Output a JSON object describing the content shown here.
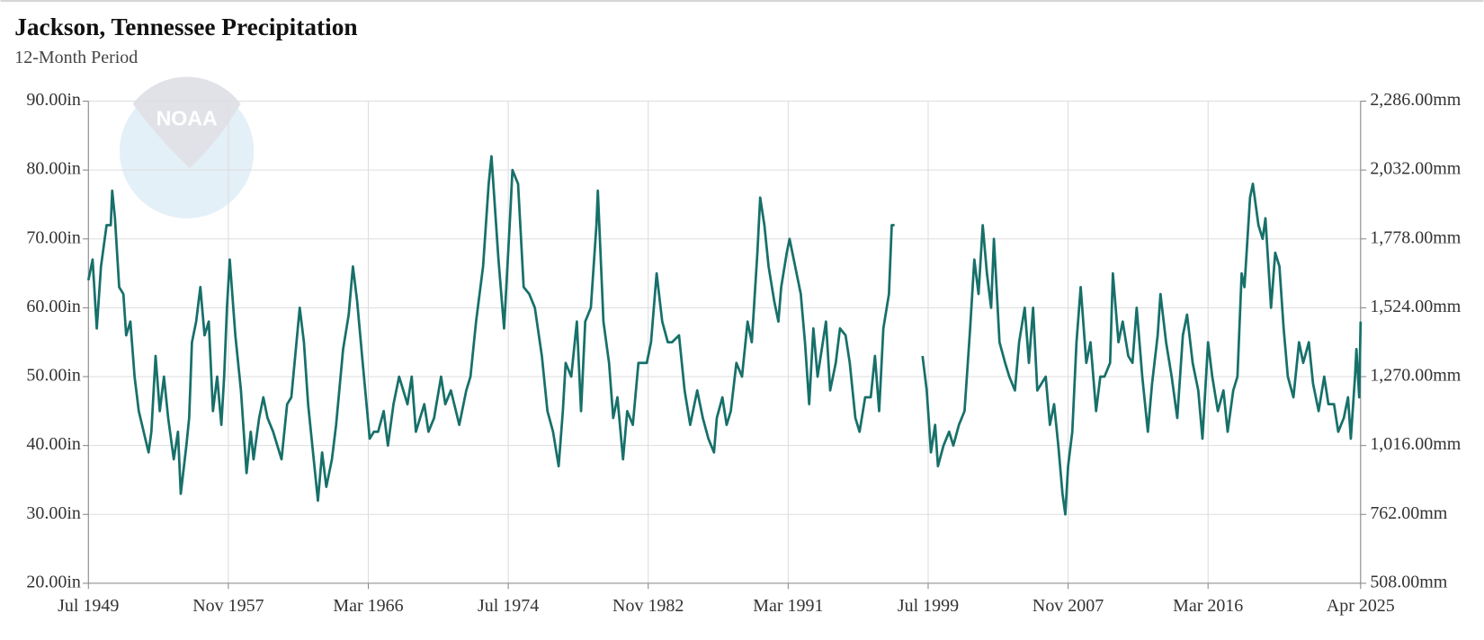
{
  "chart_data": {
    "type": "line",
    "title": "Jackson, Tennessee Precipitation",
    "subtitle": "12-Month Period",
    "watermark": "NOAA",
    "grid": true,
    "xlim": [
      "1949-07",
      "2025-04"
    ],
    "xticks": [
      {
        "value": "1949-07",
        "label": "Jul 1949"
      },
      {
        "value": "1957-11",
        "label": "Nov 1957"
      },
      {
        "value": "1966-03",
        "label": "Mar 1966"
      },
      {
        "value": "1974-07",
        "label": "Jul 1974"
      },
      {
        "value": "1982-11",
        "label": "Nov 1982"
      },
      {
        "value": "1991-03",
        "label": "Mar 1991"
      },
      {
        "value": "1999-07",
        "label": "Jul 1999"
      },
      {
        "value": "2007-11",
        "label": "Nov 2007"
      },
      {
        "value": "2016-03",
        "label": "Mar 2016"
      },
      {
        "value": "2025-04",
        "label": "Apr 2025"
      }
    ],
    "ylim": [
      20,
      90
    ],
    "yticks": [
      {
        "value": 90,
        "label": "90.00in"
      },
      {
        "value": 80,
        "label": "80.00in"
      },
      {
        "value": 70,
        "label": "70.00in"
      },
      {
        "value": 60,
        "label": "60.00in"
      },
      {
        "value": 50,
        "label": "50.00in"
      },
      {
        "value": 40,
        "label": "40.00in"
      },
      {
        "value": 30,
        "label": "30.00in"
      },
      {
        "value": 20,
        "label": "20.00in"
      }
    ],
    "y2lim": [
      508,
      2286
    ],
    "y2ticks": [
      {
        "value": 2286,
        "label": "2,286.00mm"
      },
      {
        "value": 2032,
        "label": "2,032.00mm"
      },
      {
        "value": 1778,
        "label": "1,778.00mm"
      },
      {
        "value": 1524,
        "label": "1,524.00mm"
      },
      {
        "value": 1270,
        "label": "1,270.00mm"
      },
      {
        "value": 1016,
        "label": "1,016.00mm"
      },
      {
        "value": 762,
        "label": "762.00mm"
      },
      {
        "value": 508,
        "label": "508.00mm"
      }
    ],
    "x": [
      "1949-07",
      "1949-10",
      "1950-01",
      "1950-04",
      "1950-08",
      "1950-11",
      "1950-12",
      "1951-02",
      "1951-05",
      "1951-08",
      "1951-10",
      "1952-01",
      "1952-04",
      "1952-07",
      "1953-02",
      "1953-04",
      "1953-07",
      "1953-10",
      "1954-01",
      "1954-04",
      "1954-08",
      "1954-11",
      "1955-01",
      "1955-05",
      "1955-07",
      "1955-09",
      "1955-12",
      "1956-03",
      "1956-06",
      "1956-09",
      "1956-12",
      "1957-03",
      "1957-06",
      "1957-08",
      "1957-10",
      "1957-12",
      "1958-04",
      "1958-08",
      "1958-12",
      "1959-03",
      "1959-05",
      "1959-09",
      "1959-12",
      "1960-03",
      "1960-07",
      "1961-01",
      "1961-05",
      "1961-08",
      "1962-02",
      "1962-05",
      "1962-08",
      "1963-03",
      "1963-06",
      "1963-09",
      "1964-01",
      "1964-04",
      "1964-09",
      "1965-01",
      "1965-04",
      "1965-07",
      "1965-11",
      "1966-04",
      "1966-07",
      "1966-10",
      "1967-02",
      "1967-05",
      "1967-09",
      "1968-01",
      "1968-07",
      "1968-10",
      "1969-01",
      "1969-07",
      "1969-10",
      "1970-02",
      "1970-07",
      "1970-10",
      "1971-02",
      "1971-08",
      "1972-01",
      "1972-04",
      "1972-08",
      "1973-01",
      "1973-05",
      "1973-07",
      "1973-12",
      "1974-04",
      "1974-08",
      "1974-10",
      "1975-02",
      "1975-06",
      "1975-10",
      "1976-02",
      "1976-07",
      "1976-11",
      "1977-03",
      "1977-07",
      "1977-10",
      "1977-12",
      "1978-04",
      "1978-08",
      "1978-11",
      "1979-02",
      "1979-06",
      "1979-10",
      "1979-11",
      "1980-03",
      "1980-07",
      "1980-10",
      "1981-01",
      "1981-05",
      "1981-08",
      "1981-12",
      "1982-04",
      "1982-10",
      "1983-01",
      "1983-05",
      "1983-09",
      "1984-01",
      "1984-04",
      "1984-09",
      "1985-01",
      "1985-05",
      "1985-10",
      "1986-02",
      "1986-06",
      "1986-10",
      "1986-12",
      "1987-04",
      "1987-07",
      "1987-10",
      "1988-02",
      "1988-06",
      "1988-10",
      "1989-01",
      "1989-05",
      "1989-07",
      "1989-10",
      "1990-01",
      "1990-05",
      "1990-08",
      "1990-10",
      "1991-02",
      "1991-04",
      "1991-08",
      "1991-12",
      "1992-03",
      "1992-06",
      "1992-09",
      "1992-12",
      "1993-03",
      "1993-06",
      "1993-09",
      "1994-01",
      "1994-04",
      "1994-08",
      "1994-11",
      "1995-03",
      "1995-06",
      "1995-10",
      "1996-02",
      "1996-05",
      "1996-08",
      "1996-11",
      "1997-03",
      "1997-05",
      "1997-07",
      "1998-06",
      "1999-03",
      "1999-06",
      "1999-09",
      "1999-12",
      "2000-02",
      "2000-06",
      "2000-10",
      "2001-01",
      "2001-05",
      "2001-09",
      "2002-01",
      "2002-04",
      "2002-07",
      "2002-10",
      "2003-01",
      "2003-04",
      "2003-06",
      "2003-10",
      "2004-02",
      "2004-05",
      "2004-09",
      "2004-12",
      "2005-04",
      "2005-07",
      "2005-10",
      "2006-01",
      "2006-04",
      "2006-07",
      "2006-10",
      "2007-01",
      "2007-04",
      "2007-07",
      "2007-09",
      "2007-11",
      "2008-02",
      "2008-05",
      "2008-08",
      "2008-12",
      "2009-03",
      "2009-07",
      "2009-10",
      "2010-01",
      "2010-05",
      "2010-07",
      "2010-11",
      "2011-02",
      "2011-06",
      "2011-09",
      "2011-12",
      "2012-04",
      "2012-08",
      "2012-11",
      "2013-03",
      "2013-05",
      "2013-09",
      "2014-01",
      "2014-05",
      "2014-09",
      "2014-12",
      "2015-04",
      "2015-08",
      "2015-11",
      "2016-03",
      "2016-06",
      "2016-10",
      "2017-02",
      "2017-05",
      "2017-09",
      "2017-12",
      "2018-03",
      "2018-05",
      "2018-09",
      "2018-11",
      "2019-03",
      "2019-06",
      "2019-08",
      "2019-12",
      "2020-03",
      "2020-06",
      "2020-09",
      "2020-12",
      "2021-04",
      "2021-08",
      "2021-11",
      "2022-03",
      "2022-06",
      "2022-10",
      "2023-02",
      "2023-05",
      "2023-09",
      "2023-12",
      "2024-04",
      "2024-07",
      "2024-09",
      "2024-12",
      "2025-01",
      "2025-03",
      "2025-04"
    ],
    "series": [
      {
        "name": "Precipitation",
        "color": "#17706a",
        "values": [
          64,
          67,
          57,
          66,
          72,
          72,
          77,
          73,
          63,
          62,
          56,
          58,
          50,
          45,
          39,
          42,
          53,
          45,
          50,
          44,
          38,
          42,
          33,
          40,
          44,
          55,
          58,
          63,
          56,
          58,
          45,
          50,
          43,
          50,
          60,
          67,
          56,
          48,
          36,
          42,
          38,
          44,
          47,
          44,
          42,
          38,
          46,
          47,
          60,
          55,
          46,
          32,
          39,
          34,
          38,
          43,
          54,
          59,
          66,
          61,
          52,
          41,
          42,
          42,
          45,
          40,
          46,
          50,
          46,
          50,
          42,
          46,
          42,
          44,
          50,
          46,
          48,
          43,
          48,
          50,
          58,
          66,
          78,
          82,
          67,
          57,
          72,
          80,
          78,
          63,
          62,
          60,
          53,
          45,
          42,
          37,
          45,
          52,
          50,
          58,
          45,
          58,
          60,
          72,
          77,
          58,
          52,
          44,
          47,
          38,
          45,
          43,
          52,
          52,
          55,
          65,
          58,
          55,
          55,
          56,
          48,
          43,
          48,
          44,
          41,
          39,
          44,
          47,
          43,
          45,
          52,
          50,
          58,
          55,
          68,
          76,
          72,
          66,
          61,
          58,
          63,
          68,
          70,
          66,
          62,
          55,
          46,
          57,
          50,
          54,
          58,
          48,
          52,
          57,
          56,
          52,
          44,
          42,
          47,
          47,
          53,
          45,
          57,
          62,
          72,
          72,
          null,
          53,
          48,
          39,
          43,
          37,
          40,
          42,
          40,
          43,
          45,
          57,
          67,
          62,
          72,
          65,
          60,
          70,
          55,
          52,
          50,
          48,
          55,
          60,
          52,
          60,
          48,
          49,
          50,
          43,
          46,
          40,
          33,
          30,
          37,
          42,
          55,
          63,
          52,
          55,
          45,
          50,
          50,
          52,
          65,
          55,
          58,
          53,
          52,
          60,
          50,
          42,
          49,
          56,
          62,
          55,
          50,
          44,
          56,
          59,
          52,
          48,
          41,
          55,
          50,
          45,
          48,
          42,
          48,
          50,
          65,
          63,
          76,
          78,
          72,
          70,
          73,
          60,
          68,
          66,
          57,
          50,
          47,
          55,
          52,
          55,
          49,
          45,
          50,
          46,
          46,
          42,
          44,
          47,
          41,
          50,
          54,
          47,
          58
        ]
      }
    ]
  }
}
